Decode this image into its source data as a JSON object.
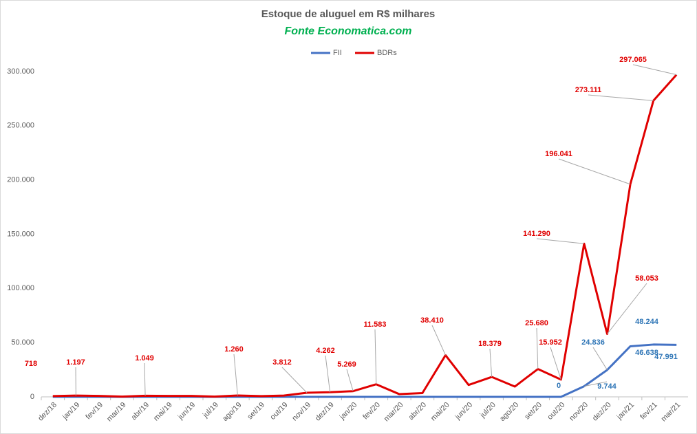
{
  "chart_data": {
    "type": "line",
    "title": "Estoque de aluguel em R$ milhares",
    "subtitle": "Fonte Economatica.com",
    "categories": [
      "dez/18",
      "jan/19",
      "fev/19",
      "mar/19",
      "abr/19",
      "mai/19",
      "jun/19",
      "jul/19",
      "ago/19",
      "set/19",
      "out/19",
      "nov/19",
      "dez/19",
      "jan/20",
      "fev/20",
      "mar/20",
      "abr/20",
      "mai/20",
      "jun/20",
      "jul/20",
      "ago/20",
      "set/20",
      "out/20",
      "nov/20",
      "dez/20",
      "jan/21",
      "fev/21",
      "mar/21"
    ],
    "series": [
      {
        "name": "FII",
        "color": "#4472c4",
        "label_color": "#2e75b6",
        "values": [
          0,
          0,
          0,
          0,
          0,
          0,
          0,
          0,
          0,
          0,
          0,
          0,
          0,
          0,
          0,
          0,
          0,
          0,
          0,
          0,
          0,
          0,
          0,
          9744,
          24836,
          46638,
          48244,
          47991
        ],
        "value_labels": [
          null,
          null,
          null,
          null,
          null,
          null,
          null,
          null,
          null,
          null,
          null,
          null,
          null,
          null,
          null,
          null,
          null,
          null,
          null,
          null,
          null,
          null,
          "0",
          "9.744",
          "24.836",
          "46.638",
          "48.244",
          "47.991"
        ]
      },
      {
        "name": "BDRs",
        "color": "#e00000",
        "label_color": "#e00000",
        "values": [
          718,
          1197,
          900,
          200,
          1049,
          900,
          900,
          200,
          1260,
          700,
          1200,
          3812,
          4262,
          5269,
          11583,
          2500,
          3500,
          38410,
          11000,
          18379,
          9500,
          25680,
          15952,
          141290,
          58053,
          196041,
          273111,
          297065
        ],
        "value_labels": [
          "718",
          "1.197",
          null,
          null,
          "1.049",
          null,
          null,
          null,
          "1.260",
          null,
          null,
          "3.812",
          "4.262",
          "5.269",
          "11.583",
          null,
          null,
          "38.410",
          null,
          "18.379",
          null,
          "25.680",
          "15.952",
          "141.290",
          "58.053",
          "196.041",
          "273.111",
          "297.065"
        ]
      }
    ],
    "ylim": [
      0,
      300000
    ],
    "yticks": [
      0,
      {
        "value": 50000,
        "label": "50.000"
      },
      {
        "value": 100000,
        "label": "100.000"
      },
      {
        "value": 150000,
        "label": "150.000"
      },
      {
        "value": 200000,
        "label": "200.000"
      },
      {
        "value": 250000,
        "label": "250.000"
      },
      {
        "value": 300000,
        "label": "300.000"
      }
    ],
    "grid": false,
    "legend": "top"
  }
}
